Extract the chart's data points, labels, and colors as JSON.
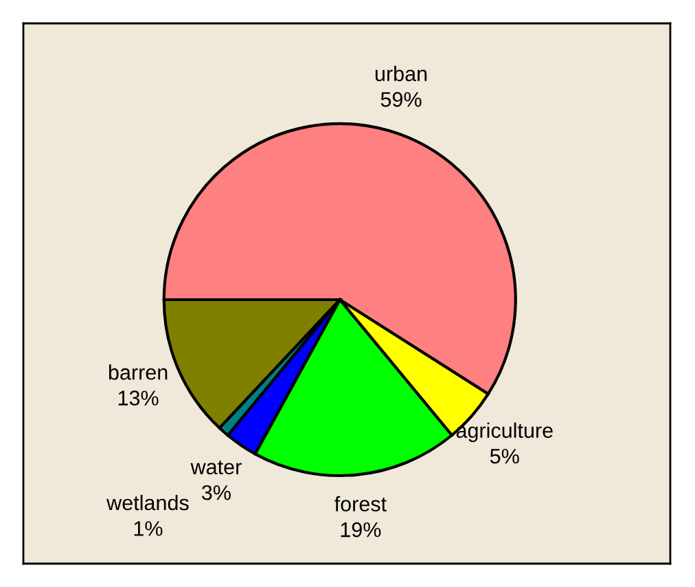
{
  "chart_data": {
    "type": "pie",
    "categories": [
      "urban",
      "agriculture",
      "forest",
      "water",
      "wetlands",
      "barren"
    ],
    "values": [
      59,
      5,
      19,
      3,
      1,
      13
    ],
    "value_labels": [
      "59%",
      "5%",
      "19%",
      "3%",
      "1%",
      "13%"
    ],
    "colors": [
      "#ff8080",
      "#ffff00",
      "#00ff00",
      "#0000ff",
      "#008080",
      "#808000"
    ],
    "legend": false
  }
}
